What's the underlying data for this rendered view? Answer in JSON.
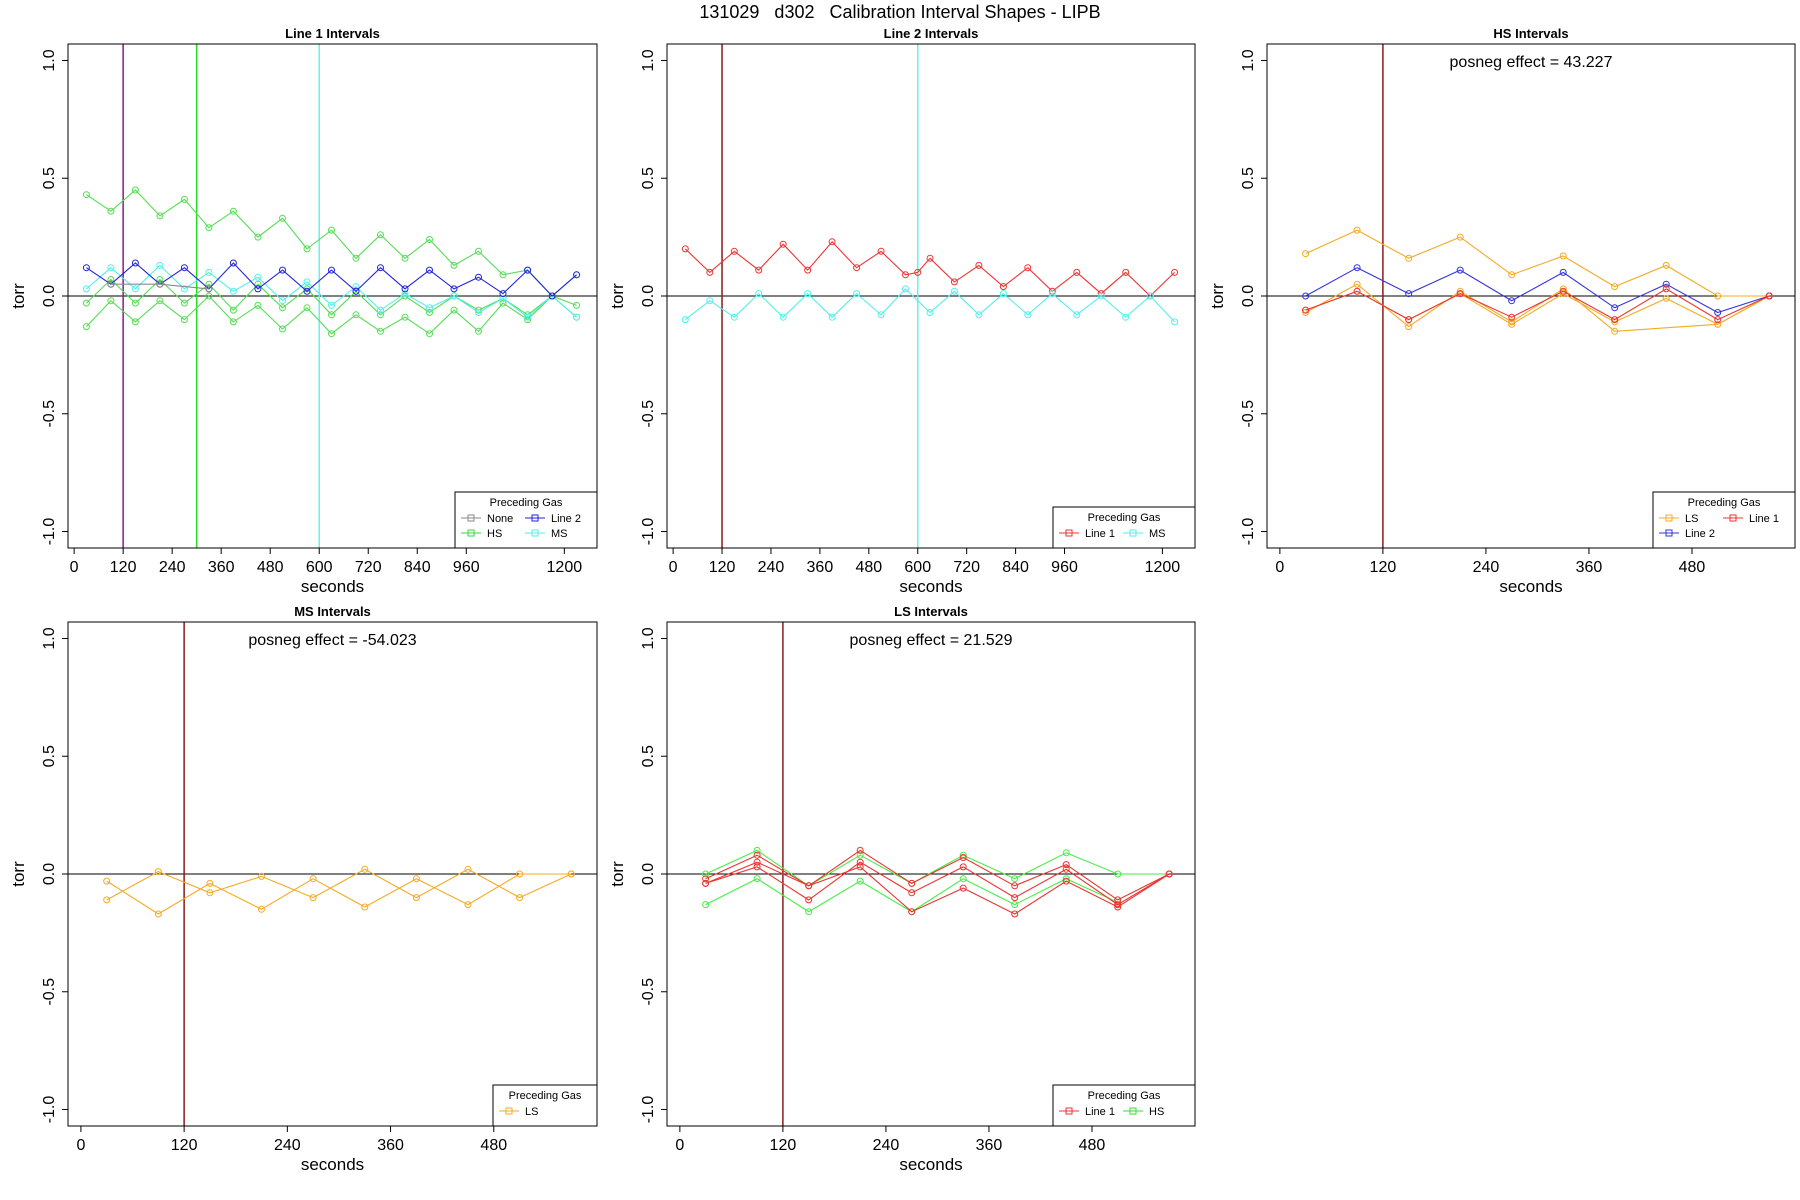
{
  "figure": {
    "title": "131029   d302   Calibration Interval Shapes - LIPB"
  },
  "chart_data": [
    {
      "type": "line",
      "title": "Line 1 Intervals",
      "xlabel": "seconds",
      "ylabel": "torr",
      "xlim": [
        -15,
        1280
      ],
      "ylim": [
        -1.07,
        1.07
      ],
      "xticks": [
        0,
        120,
        240,
        360,
        480,
        600,
        720,
        840,
        960,
        1200
      ],
      "yticks": [
        -1.0,
        -0.5,
        0.0,
        0.5,
        1.0
      ],
      "ytick_labels": [
        "-1.0",
        "-0.5",
        "0.0",
        "0.5",
        "1.0"
      ],
      "vlines": [
        {
          "x": 120,
          "color": "#8b1a8b"
        },
        {
          "x": 300,
          "color": "#22dd22"
        },
        {
          "x": 600,
          "color": "#66f0f0"
        }
      ],
      "annotation": "",
      "legend": {
        "title": "Preceding Gas",
        "cols": 2,
        "entries": [
          {
            "label": "None",
            "color": "#888888"
          },
          {
            "label": "Line 2",
            "color": "#2222dd"
          },
          {
            "label": "HS",
            "color": "#33dd33"
          },
          {
            "label": "MS",
            "color": "#55eeee"
          }
        ]
      },
      "series": [
        {
          "name": "HS",
          "color": "#55dd55",
          "x": [
            30,
            90,
            150,
            210,
            270,
            330,
            390,
            450,
            510,
            570,
            630,
            690,
            750,
            810,
            870,
            930,
            990,
            1050,
            1110,
            1170,
            1230
          ],
          "values": [
            0.43,
            0.36,
            0.45,
            0.34,
            0.41,
            0.29,
            0.36,
            0.25,
            0.33,
            0.2,
            0.28,
            0.16,
            0.26,
            0.16,
            0.24,
            0.13,
            0.19,
            0.09,
            0.11,
            0.0,
            0.09
          ]
        },
        {
          "name": "HS",
          "color": "#55dd55",
          "x": [
            30,
            90,
            150,
            210,
            270,
            330,
            390,
            450,
            510,
            570,
            630,
            690,
            750,
            810,
            870,
            930,
            990,
            1050,
            1110,
            1170,
            1230
          ],
          "values": [
            -0.03,
            0.07,
            -0.03,
            0.07,
            -0.03,
            0.05,
            -0.06,
            0.05,
            -0.05,
            0.03,
            -0.08,
            0.02,
            -0.08,
            0.0,
            -0.07,
            0.0,
            -0.06,
            -0.01,
            -0.08,
            0.0,
            -0.04
          ]
        },
        {
          "name": "HS",
          "color": "#55dd55",
          "x": [
            30,
            90,
            150,
            210,
            270,
            330,
            390,
            450,
            510,
            570,
            630,
            690,
            750,
            810,
            870,
            930,
            990,
            1050,
            1110,
            1170,
            1230
          ],
          "values": [
            -0.13,
            -0.02,
            -0.11,
            -0.02,
            -0.1,
            0.0,
            -0.11,
            -0.04,
            -0.14,
            -0.05,
            -0.16,
            -0.08,
            -0.15,
            -0.09,
            -0.16,
            -0.06,
            -0.15,
            -0.03,
            -0.1,
            0.0,
            -0.09
          ]
        },
        {
          "name": "MS",
          "color": "#55eeee",
          "x": [
            30,
            90,
            150,
            210,
            270,
            330,
            390,
            450,
            510,
            570,
            630,
            690,
            750,
            810,
            870,
            930,
            990,
            1050,
            1110,
            1170,
            1230
          ],
          "values": [
            0.03,
            0.12,
            0.03,
            0.13,
            0.03,
            0.1,
            0.02,
            0.08,
            -0.02,
            0.06,
            -0.04,
            0.04,
            -0.06,
            0.01,
            -0.05,
            0.0,
            -0.07,
            -0.01,
            -0.09,
            0.0,
            -0.09
          ]
        },
        {
          "name": "Line 2",
          "color": "#2222dd",
          "x": [
            30,
            90,
            150,
            210,
            270,
            330,
            390,
            450,
            510,
            570,
            630,
            690,
            750,
            810,
            870,
            930,
            990,
            1050,
            1110,
            1170,
            1230
          ],
          "values": [
            0.12,
            0.05,
            0.14,
            0.05,
            0.12,
            0.03,
            0.14,
            0.03,
            0.11,
            0.02,
            0.11,
            0.02,
            0.12,
            0.03,
            0.11,
            0.03,
            0.08,
            0.01,
            0.11,
            0.0,
            0.09
          ]
        },
        {
          "name": "None",
          "color": "#888888",
          "x": [
            90,
            210,
            330
          ],
          "values": [
            0.05,
            0.05,
            0.03
          ]
        }
      ]
    },
    {
      "type": "line",
      "title": "Line 2 Intervals",
      "xlabel": "seconds",
      "ylabel": "torr",
      "xlim": [
        -15,
        1280
      ],
      "ylim": [
        -1.07,
        1.07
      ],
      "xticks": [
        0,
        120,
        240,
        360,
        480,
        600,
        720,
        840,
        960,
        1200
      ],
      "yticks": [
        -1.0,
        -0.5,
        0.0,
        0.5,
        1.0
      ],
      "ytick_labels": [
        "-1.0",
        "-0.5",
        "0.0",
        "0.5",
        "1.0"
      ],
      "vlines": [
        {
          "x": 120,
          "color": "#8b1a1a"
        },
        {
          "x": 600,
          "color": "#66f0f0"
        }
      ],
      "annotation": "",
      "legend": {
        "title": "Preceding Gas",
        "cols": 2,
        "entries": [
          {
            "label": "Line 1",
            "color": "#ee3333"
          },
          {
            "label": "MS",
            "color": "#55eeee"
          }
        ]
      },
      "series": [
        {
          "name": "Line 1",
          "color": "#ee3333",
          "x": [
            30,
            90,
            150,
            210,
            270,
            330,
            390,
            450,
            510,
            570,
            600,
            630,
            690,
            750,
            810,
            870,
            930,
            990,
            1050,
            1110,
            1170,
            1230
          ],
          "values": [
            0.2,
            0.1,
            0.19,
            0.11,
            0.22,
            0.11,
            0.23,
            0.12,
            0.19,
            0.09,
            0.1,
            0.16,
            0.06,
            0.13,
            0.04,
            0.12,
            0.02,
            0.1,
            0.01,
            0.1,
            0.0,
            0.1
          ]
        },
        {
          "name": "MS",
          "color": "#55eeee",
          "x": [
            30,
            90,
            150,
            210,
            270,
            330,
            390,
            450,
            510,
            570,
            630,
            690,
            750,
            810,
            870,
            930,
            990,
            1050,
            1110,
            1170,
            1230
          ],
          "values": [
            -0.1,
            -0.02,
            -0.09,
            0.01,
            -0.09,
            0.01,
            -0.09,
            0.01,
            -0.08,
            0.03,
            -0.07,
            0.02,
            -0.08,
            0.01,
            -0.08,
            0.01,
            -0.08,
            0.0,
            -0.09,
            0.0,
            -0.11
          ]
        }
      ]
    },
    {
      "type": "line",
      "title": "HS Intervals",
      "xlabel": "seconds",
      "ylabel": "torr",
      "xlim": [
        -15,
        600
      ],
      "ylim": [
        -1.07,
        1.07
      ],
      "xticks": [
        0,
        120,
        240,
        360,
        480
      ],
      "yticks": [
        -1.0,
        -0.5,
        0.0,
        0.5,
        1.0
      ],
      "ytick_labels": [
        "-1.0",
        "-0.5",
        "0.0",
        "0.5",
        "1.0"
      ],
      "vlines": [
        {
          "x": 120,
          "color": "#8b1a1a"
        }
      ],
      "annotation": "posneg effect = 43.227",
      "legend": {
        "title": "Preceding Gas",
        "cols": 2,
        "entries": [
          {
            "label": "LS",
            "color": "#f5aa22"
          },
          {
            "label": "Line 1",
            "color": "#ee3333"
          },
          {
            "label": "Line 2",
            "color": "#3333dd"
          }
        ]
      },
      "series": [
        {
          "name": "LS",
          "color": "#f5aa22",
          "x": [
            30,
            90,
            150,
            210,
            270,
            330,
            390,
            450,
            510,
            570
          ],
          "values": [
            0.18,
            0.28,
            0.16,
            0.25,
            0.09,
            0.17,
            0.04,
            0.13,
            0.0,
            0.0
          ]
        },
        {
          "name": "LS",
          "color": "#f5aa22",
          "x": [
            30,
            90,
            150,
            210,
            270,
            330,
            390,
            510,
            570
          ],
          "values": [
            -0.07,
            0.05,
            -0.13,
            0.02,
            -0.11,
            0.03,
            -0.15,
            -0.12,
            0.0
          ]
        },
        {
          "name": "LS",
          "color": "#f5aa22",
          "x": [
            30,
            90,
            150,
            210,
            270,
            330,
            390,
            450,
            510,
            570
          ],
          "values": [
            -0.06,
            0.02,
            -0.1,
            0.01,
            -0.12,
            0.01,
            -0.11,
            -0.01,
            -0.12,
            0.0
          ]
        },
        {
          "name": "Line 2",
          "color": "#3333dd",
          "x": [
            30,
            90,
            150,
            210,
            270,
            330,
            390,
            450,
            510,
            570
          ],
          "values": [
            0.0,
            0.12,
            0.01,
            0.11,
            -0.02,
            0.1,
            -0.05,
            0.05,
            -0.07,
            0.0
          ]
        },
        {
          "name": "Line 1",
          "color": "#ee3333",
          "x": [
            30,
            90,
            150,
            210,
            270,
            330,
            390,
            450,
            510,
            570
          ],
          "values": [
            -0.06,
            0.02,
            -0.1,
            0.01,
            -0.09,
            0.02,
            -0.1,
            0.03,
            -0.1,
            0.0
          ]
        }
      ]
    },
    {
      "type": "line",
      "title": "MS Intervals",
      "xlabel": "seconds",
      "ylabel": "torr",
      "xlim": [
        -15,
        600
      ],
      "ylim": [
        -1.07,
        1.07
      ],
      "xticks": [
        0,
        120,
        240,
        360,
        480
      ],
      "yticks": [
        -1.0,
        -0.5,
        0.0,
        0.5,
        1.0
      ],
      "ytick_labels": [
        "-1.0",
        "-0.5",
        "0.0",
        "0.5",
        "1.0"
      ],
      "vlines": [
        {
          "x": 120,
          "color": "#8b1a1a"
        }
      ],
      "annotation": "posneg effect = -54.023",
      "legend": {
        "title": "Preceding Gas",
        "cols": 1,
        "entries": [
          {
            "label": "LS",
            "color": "#f5aa22"
          }
        ]
      },
      "series": [
        {
          "name": "LS",
          "color": "#f5aa22",
          "x": [
            30,
            90,
            150,
            210,
            270,
            330,
            390,
            450,
            510,
            570
          ],
          "values": [
            -0.03,
            -0.17,
            -0.04,
            -0.15,
            -0.02,
            -0.14,
            -0.02,
            -0.13,
            0.0,
            0.0
          ]
        },
        {
          "name": "LS",
          "color": "#f5aa22",
          "x": [
            30,
            90,
            150,
            210,
            270,
            330,
            390,
            450,
            510,
            570
          ],
          "values": [
            -0.11,
            0.01,
            -0.08,
            -0.01,
            -0.1,
            0.02,
            -0.1,
            0.02,
            -0.1,
            0.0
          ]
        }
      ]
    },
    {
      "type": "line",
      "title": "LS Intervals",
      "xlabel": "seconds",
      "ylabel": "torr",
      "xlim": [
        -15,
        600
      ],
      "ylim": [
        -1.07,
        1.07
      ],
      "xticks": [
        0,
        120,
        240,
        360,
        480
      ],
      "yticks": [
        -1.0,
        -0.5,
        0.0,
        0.5,
        1.0
      ],
      "ytick_labels": [
        "-1.0",
        "-0.5",
        "0.0",
        "0.5",
        "1.0"
      ],
      "vlines": [
        {
          "x": 120,
          "color": "#8b1a1a"
        }
      ],
      "annotation": "posneg effect = 21.529",
      "legend": {
        "title": "Preceding Gas",
        "cols": 2,
        "entries": [
          {
            "label": "Line 1",
            "color": "#ee3333"
          },
          {
            "label": "HS",
            "color": "#33dd33"
          }
        ]
      },
      "series": [
        {
          "name": "HS",
          "color": "#44ee44",
          "x": [
            30,
            90,
            150,
            210,
            270,
            330,
            390,
            450,
            510
          ],
          "values": [
            -0.13,
            -0.02,
            -0.16,
            -0.03,
            -0.16,
            -0.02,
            -0.13,
            -0.02,
            -0.12
          ]
        },
        {
          "name": "HS",
          "color": "#44ee44",
          "x": [
            30,
            90,
            150,
            210,
            270,
            330,
            390,
            450,
            510,
            570
          ],
          "values": [
            0.0,
            0.1,
            -0.05,
            0.08,
            -0.04,
            0.08,
            -0.02,
            0.09,
            0.0,
            0.0
          ]
        },
        {
          "name": "Line 1",
          "color": "#ee3333",
          "x": [
            30,
            90,
            150,
            210,
            270,
            330,
            390,
            450,
            510,
            570
          ],
          "values": [
            -0.02,
            0.08,
            -0.05,
            0.1,
            -0.04,
            0.07,
            -0.05,
            0.04,
            -0.11,
            0.0
          ]
        },
        {
          "name": "Line 1",
          "color": "#ee3333",
          "x": [
            30,
            90,
            150,
            210,
            270,
            330,
            390,
            450,
            510,
            570
          ],
          "values": [
            -0.04,
            0.03,
            -0.11,
            0.05,
            -0.08,
            0.03,
            -0.1,
            0.02,
            -0.13,
            0.0
          ]
        },
        {
          "name": "Line 1",
          "color": "#ee3333",
          "x": [
            30,
            90,
            150,
            210,
            270,
            330,
            390,
            450,
            510,
            570
          ],
          "values": [
            -0.04,
            0.05,
            -0.05,
            0.03,
            -0.16,
            -0.06,
            -0.17,
            -0.03,
            -0.14,
            0.0
          ]
        }
      ]
    }
  ]
}
